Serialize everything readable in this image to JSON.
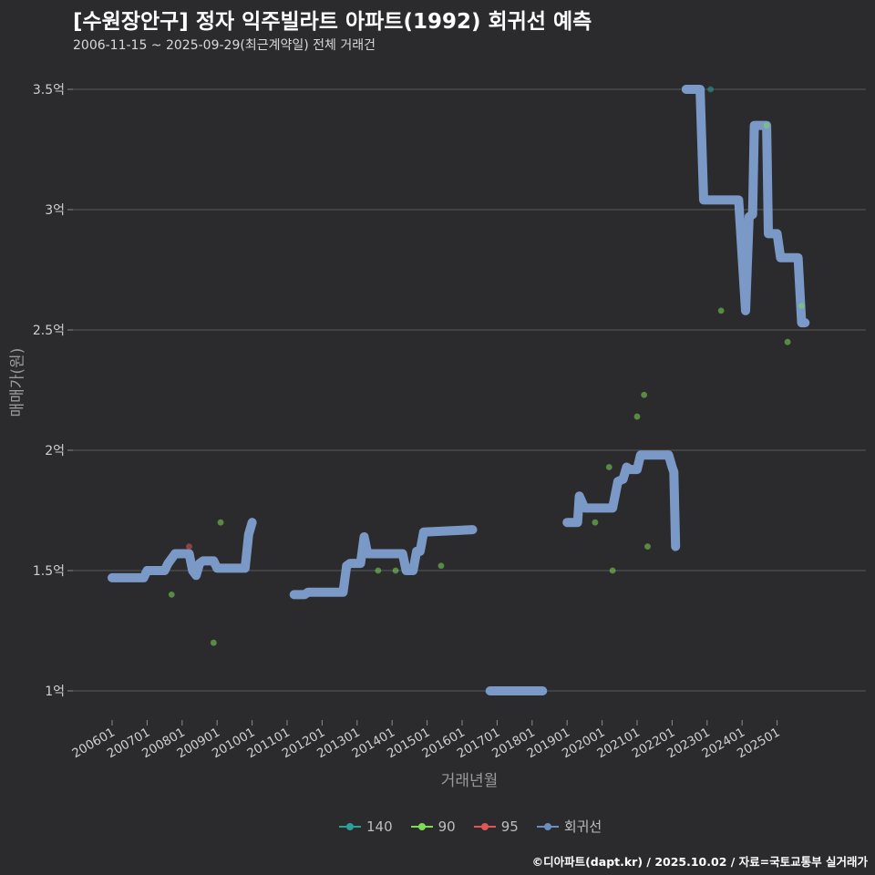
{
  "header": {
    "title": "[수원장안구] 정자 익주빌라트 아파트(1992) 회귀선 예측",
    "subtitle": "2006-11-15 ~ 2025-09-29(최근계약일) 전체 거래건"
  },
  "caption": "©디아파트(dapt.kr) / 2025.10.02 / 자료=국토교통부 실거래가",
  "chart_data": {
    "type": "scatter",
    "xlabel": "거래년월",
    "ylabel": "매매가(원)",
    "x_ticks": [
      "200601",
      "200701",
      "200801",
      "200901",
      "201001",
      "201101",
      "201201",
      "201301",
      "201401",
      "201501",
      "201601",
      "201701",
      "201801",
      "201901",
      "202001",
      "202101",
      "202201",
      "202301",
      "202401",
      "202501"
    ],
    "y_ticks": [
      {
        "value": 1.0,
        "label": "1억"
      },
      {
        "value": 1.5,
        "label": "1.5억"
      },
      {
        "value": 2.0,
        "label": "2억"
      },
      {
        "value": 2.5,
        "label": "2.5억"
      },
      {
        "value": 3.0,
        "label": "3억"
      },
      {
        "value": 3.5,
        "label": "3.5억"
      }
    ],
    "ylim": [
      0.88,
      3.65
    ],
    "xlim": [
      2005.0,
      2027.0
    ],
    "y_unit": "억",
    "grid": "horizontal",
    "legend_position": "bottom",
    "legend": [
      {
        "name": "140",
        "color": "#2aa198"
      },
      {
        "name": "90",
        "color": "#7ed957"
      },
      {
        "name": "95",
        "color": "#e05555"
      },
      {
        "name": "회귀선",
        "color": "#6c8ebf"
      }
    ],
    "series": [
      {
        "name": "140",
        "color": "#2aa198",
        "points": [
          [
            2023.1,
            3.5
          ]
        ]
      },
      {
        "name": "90",
        "color": "#7ed957",
        "points": [
          [
            2007.7,
            1.4
          ],
          [
            2008.9,
            1.2
          ],
          [
            2009.1,
            1.7
          ],
          [
            2013.6,
            1.5
          ],
          [
            2014.1,
            1.5
          ],
          [
            2015.4,
            1.52
          ],
          [
            2019.8,
            1.7
          ],
          [
            2020.2,
            1.93
          ],
          [
            2020.3,
            1.5
          ],
          [
            2021.0,
            2.14
          ],
          [
            2021.2,
            2.23
          ],
          [
            2021.3,
            1.6
          ],
          [
            2023.4,
            2.58
          ],
          [
            2024.7,
            3.35
          ],
          [
            2025.3,
            2.45
          ],
          [
            2025.7,
            2.6
          ]
        ]
      },
      {
        "name": "95",
        "color": "#e05555",
        "points": [
          [
            2008.2,
            1.6
          ]
        ]
      }
    ],
    "regression": {
      "name": "회귀선",
      "color": "#7f9fcf",
      "segments": [
        [
          [
            2006.0,
            1.47
          ],
          [
            2006.4,
            1.47
          ],
          [
            2006.9,
            1.47
          ],
          [
            2007.0,
            1.5
          ],
          [
            2007.4,
            1.5
          ],
          [
            2007.5,
            1.5
          ],
          [
            2007.6,
            1.53
          ],
          [
            2007.7,
            1.55
          ],
          [
            2007.8,
            1.57
          ],
          [
            2008.2,
            1.57
          ],
          [
            2008.3,
            1.5
          ],
          [
            2008.4,
            1.48
          ],
          [
            2008.5,
            1.53
          ],
          [
            2008.6,
            1.54
          ],
          [
            2008.9,
            1.54
          ],
          [
            2009.0,
            1.51
          ],
          [
            2009.8,
            1.51
          ],
          [
            2009.9,
            1.65
          ],
          [
            2010.0,
            1.7
          ]
        ],
        [
          [
            2011.2,
            1.4
          ],
          [
            2011.5,
            1.4
          ],
          [
            2011.6,
            1.41
          ],
          [
            2012.6,
            1.41
          ],
          [
            2012.7,
            1.52
          ],
          [
            2012.8,
            1.53
          ],
          [
            2013.1,
            1.53
          ],
          [
            2013.2,
            1.64
          ],
          [
            2013.3,
            1.57
          ],
          [
            2014.3,
            1.57
          ],
          [
            2014.4,
            1.5
          ],
          [
            2014.6,
            1.5
          ],
          [
            2014.7,
            1.58
          ],
          [
            2014.8,
            1.58
          ],
          [
            2014.9,
            1.66
          ],
          [
            2016.3,
            1.67
          ]
        ],
        [
          [
            2016.8,
            1.0
          ],
          [
            2018.3,
            1.0
          ]
        ],
        [
          [
            2019.0,
            1.7
          ],
          [
            2019.3,
            1.7
          ],
          [
            2019.35,
            1.81
          ],
          [
            2019.5,
            1.76
          ],
          [
            2020.3,
            1.76
          ],
          [
            2020.45,
            1.87
          ],
          [
            2020.6,
            1.88
          ],
          [
            2020.7,
            1.93
          ],
          [
            2020.8,
            1.92
          ],
          [
            2021.0,
            1.92
          ],
          [
            2021.1,
            1.98
          ],
          [
            2021.9,
            1.98
          ],
          [
            2022.0,
            1.93
          ],
          [
            2022.05,
            1.91
          ],
          [
            2022.1,
            1.6
          ]
        ],
        [
          [
            2022.4,
            3.5
          ],
          [
            2022.8,
            3.5
          ],
          [
            2022.9,
            3.04
          ],
          [
            2023.9,
            3.04
          ],
          [
            2024.1,
            2.58
          ],
          [
            2024.2,
            2.97
          ],
          [
            2024.3,
            2.98
          ],
          [
            2024.35,
            3.35
          ],
          [
            2024.7,
            3.35
          ],
          [
            2024.75,
            2.9
          ],
          [
            2025.0,
            2.9
          ],
          [
            2025.1,
            2.8
          ],
          [
            2025.6,
            2.8
          ],
          [
            2025.7,
            2.53
          ],
          [
            2025.8,
            2.53
          ]
        ]
      ]
    }
  }
}
